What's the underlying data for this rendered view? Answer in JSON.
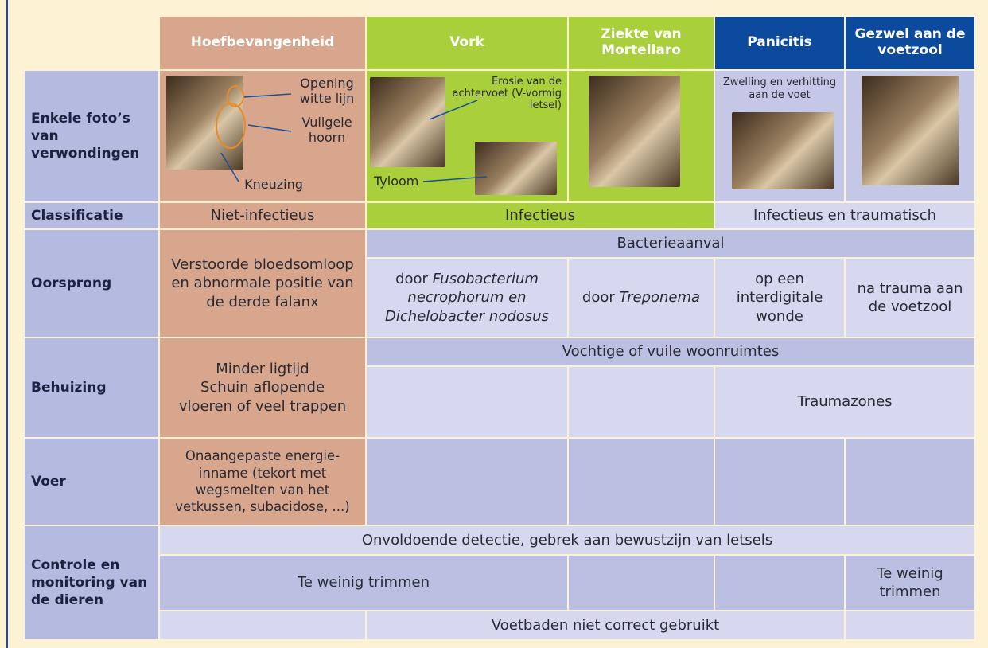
{
  "columns": [
    "Hoefbevangenheid",
    "Vork",
    "Ziekte van Mortellaro",
    "Panicitis",
    "Gezwel aan de voetzool"
  ],
  "photos": {
    "label": "Enkele foto’s van verwondingen",
    "hoefbevangenheid": [
      "Opening witte lijn",
      "Vuilgele hoorn",
      "Kneuzing"
    ],
    "vork": [
      "Erosie van de achtervoet (V-vormig letsel)",
      "Tyloom"
    ],
    "panicitis": "Zwelling en verhitting aan de voet"
  },
  "classificatie": {
    "label": "Classificatie",
    "cells": [
      "Niet-infectieus",
      "Infectieus",
      "Infectieus en traumatisch"
    ]
  },
  "oorsprong": {
    "label": "Oorsprong",
    "hoefbevangenheid": "Verstoorde bloedsomloop en abnormale positie van de derde falanx",
    "shared": "Bacterieaanval",
    "vork": {
      "text": "door ",
      "italic": "Fusobacterium necrophorum en Dichelobacter nodosus"
    },
    "mortellaro": {
      "text": "door ",
      "italic": "Treponema"
    },
    "panicitis": "op een interdigitale wonde",
    "gezwel": "na trauma aan de voetzool"
  },
  "behuizing": {
    "label": "Behuizing",
    "hoefbevangenheid": [
      "Minder ligtijd",
      "Schuin aflopende vloeren of veel trappen"
    ],
    "shared": "Vochtige of vuile woonruimtes",
    "trauma": "Traumazones"
  },
  "voer": {
    "label": "Voer",
    "hoefbevangenheid": "Onaangepaste energie-inname (tekort met wegsmelten van het vetkussen, subacidose, ...)"
  },
  "controle": {
    "label": "Controle en monitoring van de dieren",
    "detectie": "Onvoldoende detectie, gebrek aan bewustzijn van letsels",
    "trimmen": [
      "Te weinig trimmen",
      "Te weinig trimmen"
    ],
    "voetbaden": "Voetbaden niet correct gebruikt"
  }
}
